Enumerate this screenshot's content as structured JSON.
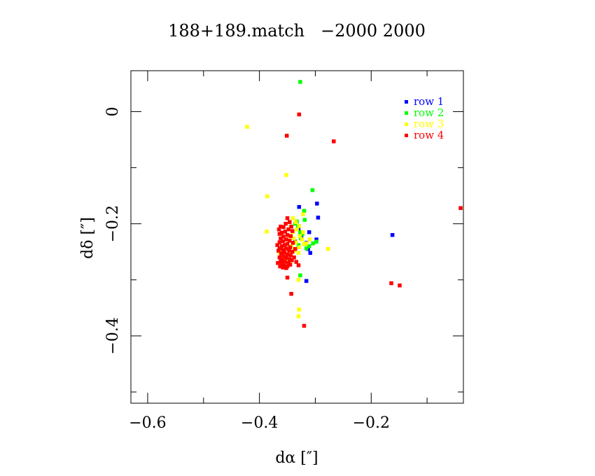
{
  "chart_data": {
    "type": "scatter",
    "title": "188+189.match   −2000 2000",
    "xlabel": "dα [″]",
    "ylabel": "dδ [″]",
    "xlim": [
      -0.63,
      -0.035
    ],
    "ylim": [
      -0.52,
      0.073
    ],
    "x_ticks_major": [
      -0.6,
      -0.4,
      -0.2
    ],
    "x_tick_labels": [
      "−0.6",
      "−0.4",
      "−0.2"
    ],
    "x_ticks_minor": [
      -0.5,
      -0.3,
      -0.1
    ],
    "y_ticks_major": [
      0,
      -0.2,
      -0.4
    ],
    "y_tick_labels": [
      "0",
      "−0.2",
      "−0.4"
    ],
    "y_ticks_minor": [
      -0.1,
      -0.3,
      -0.5
    ],
    "grid": false,
    "legend_position": "top-right",
    "series": [
      {
        "name": "row 1",
        "color": "#0000ff",
        "points": [
          [
            -0.329,
            -0.17
          ],
          [
            -0.297,
            -0.164
          ],
          [
            -0.295,
            -0.189
          ],
          [
            -0.311,
            -0.215
          ],
          [
            -0.316,
            -0.234
          ],
          [
            -0.313,
            -0.245
          ],
          [
            -0.309,
            -0.252
          ],
          [
            -0.298,
            -0.228
          ],
          [
            -0.33,
            -0.21
          ],
          [
            -0.325,
            -0.225
          ],
          [
            -0.336,
            -0.232
          ],
          [
            -0.316,
            -0.302
          ],
          [
            -0.162,
            -0.22
          ]
        ]
      },
      {
        "name": "row 2",
        "color": "#00ff00",
        "points": [
          [
            -0.327,
            0.053
          ],
          [
            -0.305,
            -0.14
          ],
          [
            -0.32,
            -0.177
          ],
          [
            -0.319,
            -0.193
          ],
          [
            -0.333,
            -0.196
          ],
          [
            -0.331,
            -0.205
          ],
          [
            -0.327,
            -0.215
          ],
          [
            -0.336,
            -0.2
          ],
          [
            -0.323,
            -0.218
          ],
          [
            -0.326,
            -0.226
          ],
          [
            -0.318,
            -0.236
          ],
          [
            -0.304,
            -0.235
          ],
          [
            -0.311,
            -0.24
          ],
          [
            -0.316,
            -0.244
          ],
          [
            -0.33,
            -0.238
          ],
          [
            -0.298,
            -0.232
          ],
          [
            -0.327,
            -0.292
          ]
        ]
      },
      {
        "name": "row 3",
        "color": "#ffff00",
        "points": [
          [
            -0.422,
            -0.027
          ],
          [
            -0.352,
            -0.113
          ],
          [
            -0.386,
            -0.151
          ],
          [
            -0.387,
            -0.214
          ],
          [
            -0.322,
            -0.183
          ],
          [
            -0.34,
            -0.19
          ],
          [
            -0.335,
            -0.197
          ],
          [
            -0.344,
            -0.205
          ],
          [
            -0.329,
            -0.204
          ],
          [
            -0.333,
            -0.21
          ],
          [
            -0.34,
            -0.215
          ],
          [
            -0.322,
            -0.215
          ],
          [
            -0.328,
            -0.222
          ],
          [
            -0.339,
            -0.226
          ],
          [
            -0.347,
            -0.222
          ],
          [
            -0.324,
            -0.228
          ],
          [
            -0.335,
            -0.233
          ],
          [
            -0.343,
            -0.24
          ],
          [
            -0.329,
            -0.242
          ],
          [
            -0.32,
            -0.236
          ],
          [
            -0.338,
            -0.248
          ],
          [
            -0.358,
            -0.246
          ],
          [
            -0.364,
            -0.252
          ],
          [
            -0.345,
            -0.254
          ],
          [
            -0.33,
            -0.252
          ],
          [
            -0.352,
            -0.262
          ],
          [
            -0.361,
            -0.268
          ],
          [
            -0.344,
            -0.266
          ],
          [
            -0.277,
            -0.245
          ],
          [
            -0.316,
            -0.235
          ],
          [
            -0.31,
            -0.228
          ],
          [
            -0.33,
            -0.3
          ],
          [
            -0.329,
            -0.353
          ],
          [
            -0.33,
            -0.365
          ]
        ]
      },
      {
        "name": "row 4",
        "color": "#ff0000",
        "points": [
          [
            -0.329,
            -0.005
          ],
          [
            -0.351,
            -0.043
          ],
          [
            -0.267,
            -0.053
          ],
          [
            -0.04,
            -0.172
          ],
          [
            -0.164,
            -0.306
          ],
          [
            -0.149,
            -0.31
          ],
          [
            -0.32,
            -0.382
          ],
          [
            -0.343,
            -0.325
          ],
          [
            -0.35,
            -0.296
          ],
          [
            -0.33,
            -0.274
          ],
          [
            -0.35,
            -0.19
          ],
          [
            -0.346,
            -0.197
          ],
          [
            -0.353,
            -0.2
          ],
          [
            -0.343,
            -0.205
          ],
          [
            -0.357,
            -0.206
          ],
          [
            -0.362,
            -0.205
          ],
          [
            -0.365,
            -0.21
          ],
          [
            -0.348,
            -0.21
          ],
          [
            -0.341,
            -0.213
          ],
          [
            -0.354,
            -0.214
          ],
          [
            -0.36,
            -0.216
          ],
          [
            -0.364,
            -0.218
          ],
          [
            -0.35,
            -0.22
          ],
          [
            -0.357,
            -0.223
          ],
          [
            -0.344,
            -0.222
          ],
          [
            -0.362,
            -0.226
          ],
          [
            -0.352,
            -0.228
          ],
          [
            -0.346,
            -0.23
          ],
          [
            -0.358,
            -0.231
          ],
          [
            -0.364,
            -0.233
          ],
          [
            -0.34,
            -0.234
          ],
          [
            -0.35,
            -0.236
          ],
          [
            -0.355,
            -0.238
          ],
          [
            -0.36,
            -0.24
          ],
          [
            -0.345,
            -0.242
          ],
          [
            -0.352,
            -0.244
          ],
          [
            -0.364,
            -0.244
          ],
          [
            -0.358,
            -0.247
          ],
          [
            -0.347,
            -0.248
          ],
          [
            -0.341,
            -0.25
          ],
          [
            -0.355,
            -0.251
          ],
          [
            -0.361,
            -0.253
          ],
          [
            -0.35,
            -0.255
          ],
          [
            -0.344,
            -0.256
          ],
          [
            -0.357,
            -0.258
          ],
          [
            -0.364,
            -0.26
          ],
          [
            -0.352,
            -0.261
          ],
          [
            -0.346,
            -0.263
          ],
          [
            -0.359,
            -0.265
          ],
          [
            -0.362,
            -0.267
          ],
          [
            -0.354,
            -0.268
          ],
          [
            -0.348,
            -0.27
          ],
          [
            -0.36,
            -0.272
          ],
          [
            -0.356,
            -0.275
          ],
          [
            -0.363,
            -0.276
          ],
          [
            -0.35,
            -0.276
          ],
          [
            -0.345,
            -0.273
          ],
          [
            -0.367,
            -0.27
          ],
          [
            -0.358,
            -0.278
          ],
          [
            -0.352,
            -0.279
          ],
          [
            -0.336,
            -0.245
          ],
          [
            -0.338,
            -0.26
          ],
          [
            -0.334,
            -0.268
          ],
          [
            -0.342,
            -0.265
          ],
          [
            -0.366,
            -0.248
          ],
          [
            -0.368,
            -0.238
          ]
        ]
      }
    ]
  }
}
